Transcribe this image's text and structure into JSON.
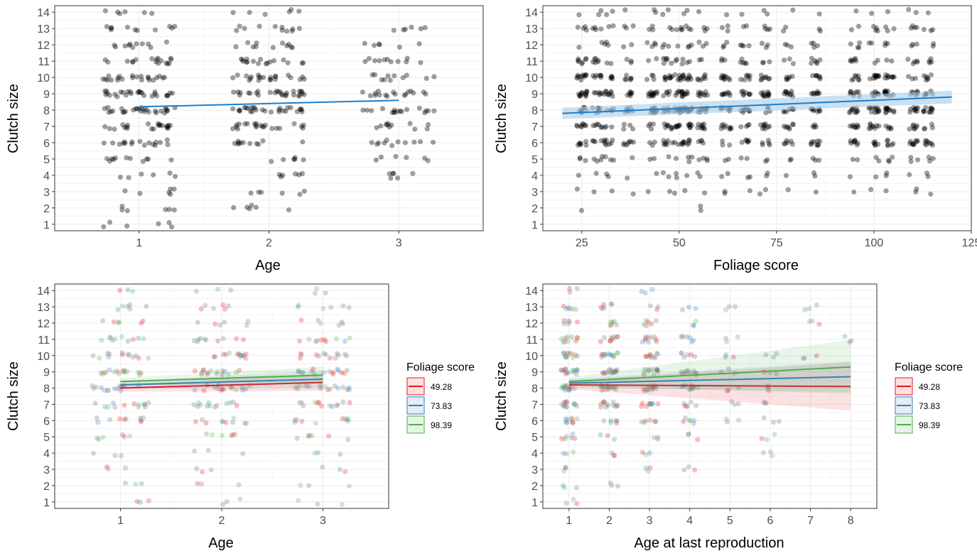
{
  "figure": {
    "panels": [
      {
        "ylabel": "Clutch size",
        "xlabel": "Age",
        "legend_title": ""
      },
      {
        "ylabel": "Clutch size",
        "xlabel": "Foliage score",
        "legend_title": ""
      },
      {
        "ylabel": "Clutch size",
        "xlabel": "Age",
        "legend_title": "Foliage score"
      },
      {
        "ylabel": "Clutch size",
        "xlabel": "Age at last reproduction",
        "legend_title": "Foliage score"
      }
    ]
  },
  "chart_data": [
    {
      "type": "scatter",
      "xlabel": "Age",
      "ylabel": "Clutch size",
      "x_categories": [
        "1",
        "2",
        "3"
      ],
      "ylim": [
        0.6,
        14.4
      ],
      "yticks": [
        1,
        2,
        3,
        4,
        5,
        6,
        7,
        8,
        9,
        10,
        11,
        12,
        13,
        14
      ],
      "grid": true,
      "point_color": "#000000",
      "points_note": "jittered individual clutch sizes per age class",
      "density_by_x": {
        "1": [
          1,
          1,
          1,
          1,
          2,
          3,
          4,
          5,
          5,
          4,
          3,
          2,
          2,
          1
        ],
        "2": [
          0,
          1,
          1,
          1,
          1,
          2,
          4,
          5,
          5,
          4,
          3,
          2,
          2,
          1
        ],
        "3": [
          0,
          0,
          0,
          1,
          1,
          2,
          2,
          3,
          3,
          2,
          2,
          1,
          1,
          0
        ]
      },
      "series": [
        {
          "fit": true,
          "color": "#1c7fcf",
          "x": [
            1,
            3
          ],
          "y": [
            8.2,
            8.6
          ]
        }
      ]
    },
    {
      "type": "scatter",
      "xlabel": "Foliage score",
      "ylabel": "Clutch size",
      "xlim": [
        15,
        125
      ],
      "xticks": [
        25,
        50,
        75,
        100,
        125
      ],
      "ylim": [
        0.6,
        14.4
      ],
      "yticks": [
        1,
        2,
        3,
        4,
        5,
        6,
        7,
        8,
        9,
        10,
        11,
        12,
        13,
        14
      ],
      "grid": true,
      "point_color": "#000000",
      "foliage_columns": [
        25,
        29,
        32,
        37,
        43,
        47,
        50,
        52,
        56,
        62,
        67,
        72,
        78,
        85,
        95,
        100,
        104,
        110,
        114
      ],
      "series": [
        {
          "fit": true,
          "color": "#1c7fcf",
          "band": "#a9cde8",
          "x": [
            20,
            120
          ],
          "y": [
            7.8,
            8.8
          ]
        }
      ]
    },
    {
      "type": "scatter",
      "xlabel": "Age",
      "ylabel": "Clutch size",
      "x_categories": [
        "1",
        "2",
        "3"
      ],
      "ylim": [
        0.6,
        14.4
      ],
      "yticks": [
        1,
        2,
        3,
        4,
        5,
        6,
        7,
        8,
        9,
        10,
        11,
        12,
        13,
        14
      ],
      "grid": true,
      "legend_position": "right",
      "series": [
        {
          "name": "49.28",
          "color": "#e41a1c",
          "x": [
            1,
            3
          ],
          "y": [
            8.0,
            8.35
          ]
        },
        {
          "name": "73.83",
          "color": "#377eb8",
          "x": [
            1,
            3
          ],
          "y": [
            8.2,
            8.55
          ]
        },
        {
          "name": "98.39",
          "color": "#4daf4a",
          "x": [
            1,
            3
          ],
          "y": [
            8.4,
            8.8
          ]
        }
      ]
    },
    {
      "type": "scatter",
      "xlabel": "Age at last reproduction",
      "ylabel": "Clutch size",
      "x_categories": [
        "1",
        "2",
        "3",
        "4",
        "5",
        "6",
        "7",
        "8"
      ],
      "ylim": [
        0.6,
        14.4
      ],
      "yticks": [
        1,
        2,
        3,
        4,
        5,
        6,
        7,
        8,
        9,
        10,
        11,
        12,
        13,
        14
      ],
      "grid": true,
      "legend_position": "right",
      "density_by_x": {
        "1": [
          1,
          1,
          1,
          1,
          2,
          3,
          4,
          5,
          5,
          4,
          3,
          2,
          2,
          1
        ],
        "2": [
          0,
          1,
          0,
          1,
          1,
          2,
          4,
          5,
          5,
          4,
          3,
          2,
          2,
          0
        ],
        "3": [
          0,
          0,
          1,
          1,
          1,
          2,
          3,
          4,
          4,
          3,
          3,
          2,
          1,
          1
        ],
        "4": [
          0,
          0,
          1,
          0,
          1,
          2,
          2,
          3,
          3,
          2,
          2,
          1,
          1,
          0
        ],
        "5": [
          0,
          0,
          0,
          0,
          0,
          1,
          1,
          1,
          1,
          1,
          1,
          0,
          1,
          0
        ],
        "6": [
          0,
          0,
          0,
          1,
          1,
          1,
          1,
          1,
          1,
          1,
          0,
          0,
          0,
          0
        ],
        "7": [
          0,
          0,
          0,
          0,
          0,
          0,
          0,
          0,
          0,
          1,
          0,
          1,
          1,
          0
        ],
        "8": [
          0,
          0,
          0,
          0,
          0,
          0,
          0,
          0,
          0,
          0,
          1,
          0,
          0,
          0
        ]
      },
      "series": [
        {
          "name": "49.28",
          "color": "#e41a1c",
          "x": [
            1,
            8
          ],
          "y": [
            8.2,
            8.1
          ]
        },
        {
          "name": "73.83",
          "color": "#377eb8",
          "x": [
            1,
            8
          ],
          "y": [
            8.3,
            8.7
          ]
        },
        {
          "name": "98.39",
          "color": "#4daf4a",
          "x": [
            1,
            8
          ],
          "y": [
            8.4,
            9.3
          ]
        }
      ]
    }
  ]
}
